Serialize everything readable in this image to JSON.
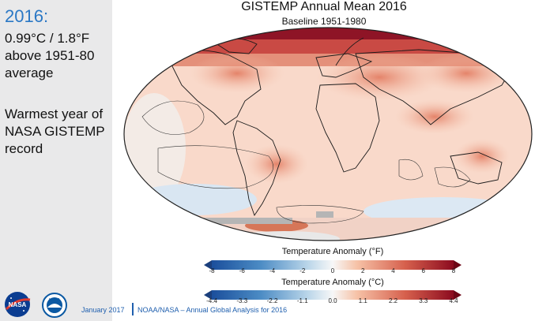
{
  "sidebar": {
    "year": "2016:",
    "anomaly": "0.99°C / 1.8°F\nabove 1951-80\naverage",
    "record": "Warmest year of\nNASA GISTEMP\nrecord"
  },
  "map": {
    "title": "GISTEMP Annual Mean 2016",
    "subtitle": "Baseline 1951-1980"
  },
  "colorbar_f": {
    "title": "Temperature Anomaly (°F)",
    "ticks": [
      "-8",
      "-6",
      "-4",
      "-2",
      "0",
      "2",
      "4",
      "6",
      "8"
    ]
  },
  "colorbar_c": {
    "title": "Temperature Anomaly (°C)",
    "ticks": [
      "-4.4",
      "-3.3",
      "-2.2",
      "-1.1",
      "0.0",
      "1.1",
      "2.2",
      "3.3",
      "4.4"
    ]
  },
  "footer": {
    "date": "January 2017",
    "source": "NOAA/NASA – Annual Global Analysis for 2016"
  },
  "logos": {
    "nasa": "NASA",
    "noaa": "NOAA"
  },
  "colors": {
    "accent_blue": "#2b78c5",
    "scale_cold": "#1b4f9c",
    "scale_neutral": "#f7f7f7",
    "scale_warm": "#8c0b1f"
  }
}
